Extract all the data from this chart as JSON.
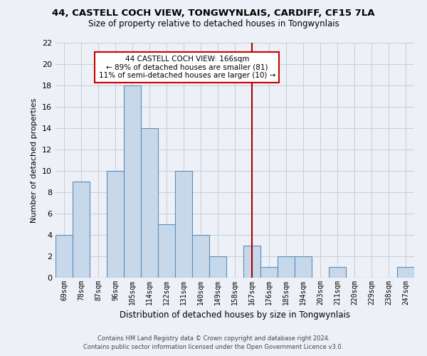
{
  "title_line1": "44, CASTELL COCH VIEW, TONGWYNLAIS, CARDIFF, CF15 7LA",
  "title_line2": "Size of property relative to detached houses in Tongwynlais",
  "xlabel": "Distribution of detached houses by size in Tongwynlais",
  "ylabel": "Number of detached properties",
  "categories": [
    "69sqm",
    "78sqm",
    "87sqm",
    "96sqm",
    "105sqm",
    "114sqm",
    "122sqm",
    "131sqm",
    "140sqm",
    "149sqm",
    "158sqm",
    "167sqm",
    "176sqm",
    "185sqm",
    "194sqm",
    "203sqm",
    "211sqm",
    "220sqm",
    "229sqm",
    "238sqm",
    "247sqm"
  ],
  "values": [
    4,
    9,
    0,
    10,
    18,
    14,
    5,
    10,
    4,
    2,
    0,
    3,
    1,
    2,
    2,
    0,
    1,
    0,
    0,
    0,
    1
  ],
  "bar_color": "#c8d8eb",
  "bar_edge_color": "#5b8db8",
  "reference_line_color": "#aa0000",
  "ylim": [
    0,
    22
  ],
  "yticks": [
    0,
    2,
    4,
    6,
    8,
    10,
    12,
    14,
    16,
    18,
    20,
    22
  ],
  "annotation_title": "44 CASTELL COCH VIEW: 166sqm",
  "annotation_line1": "← 89% of detached houses are smaller (81)",
  "annotation_line2": "11% of semi-detached houses are larger (10) →",
  "annotation_box_color": "#ffffff",
  "annotation_box_edge": "#cc0000",
  "footer_line1": "Contains HM Land Registry data © Crown copyright and database right 2024.",
  "footer_line2": "Contains public sector information licensed under the Open Government Licence v3.0.",
  "bg_color": "#edf1f7",
  "plot_bg_color": "#edf1f7",
  "grid_color": "#c5cdd8"
}
